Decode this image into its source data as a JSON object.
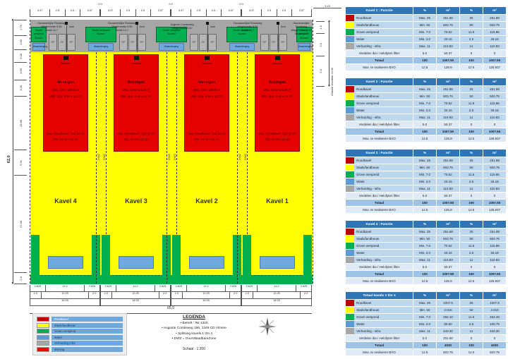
{
  "colors": {
    "roodkavel": "#E60000",
    "stads_landbouw": "#FFFF00",
    "groen_verspreid": "#00B050",
    "water": "#6FA8DC",
    "verharding_infra": "#A6A6A6",
    "table_header": "#2E75B6",
    "table_row": "#BDD7EE",
    "table_row_total": "#9DC3E6",
    "table_row_light": "#DEEBF7"
  },
  "plan": {
    "kavels": [
      {
        "label": "Kavel 4"
      },
      {
        "label": "Kavel 3"
      },
      {
        "label": "Kavel 2"
      },
      {
        "label": "Kavel 1"
      }
    ],
    "kavel_block": {
      "marker_label": "Voordeur",
      "center_lines": [
        "Woningen",
        "Max. BVO 125.9 m²",
        "Min. opp. 9.92 x 12.70"
      ],
      "bottom_lines": [
        "Max. Roodkavel : 251.88 m²",
        "Min. 11.34 x 22.21"
      ],
      "green_label": [
        "Groen verspreid",
        "Bomen"
      ],
      "water_label": "Waterberging",
      "dwz_label": "DWZ",
      "parking_label": "P.P",
      "bord_label": "bord"
    },
    "road_label": [
      "Gezamenlijke Rondweg",
      "Wegbreedte 5.50",
      "Asfalt 14.7"
    ],
    "street_label": [
      "Auguste Comteweg",
      "Wegbreedte 5.50"
    ],
    "dims": {
      "top_upper": [
        "2.0",
        "2.0",
        "2.0"
      ],
      "top_per_kavel": [
        "3.37",
        "2.5",
        "2.5",
        "3.37"
      ],
      "left_total": "62,0",
      "left_segments": [
        "2.75",
        "2.50",
        "2.00",
        "3.60",
        "3.00",
        "13.98",
        "5.91",
        "27.40",
        "2.0"
      ],
      "bottom_row1": [
        "2.625",
        "11.0",
        "2.625"
      ],
      "bottom_row2": [
        "2.0",
        "12.25",
        "2.0"
      ],
      "bottom_row3": "16.25",
      "bottom_total": "65,0",
      "right_top": "3.43",
      "right_segments": [
        "1.5",
        "3.5",
        "5.0"
      ],
      "right_total": "Afstand Voordeur 10.00"
    }
  },
  "legend": {
    "items": [
      {
        "label": "Roodkavel",
        "color": "#C00000"
      },
      {
        "label": "Stads/landbouw",
        "color": "#FFFF00"
      },
      {
        "label": "Groen verspreid",
        "color": "#00B050"
      },
      {
        "label": "Water",
        "color": "#5B9BD5"
      },
      {
        "label": "Verharding infra",
        "color": "#A6A6A6"
      },
      {
        "label": "Woning",
        "color": "#FF0000"
      }
    ]
  },
  "legenda_text": {
    "title": "LEGENDA",
    "bullets": [
      "Betreft : INI 1320",
      "Auguste Comteweg 166, 1349 CD Almere",
      "Splitsing  kavels 1 t/m 4",
      "DWZ = DoorWaadbareZone"
    ],
    "scale": "Schaal  : 1:200"
  },
  "tables": [
    {
      "title": "Kavel 1 : Functie",
      "columns": [
        "%",
        "m²",
        "%",
        "m²"
      ],
      "rows": [
        {
          "swatch": "#C00000",
          "label": "Roodkavel",
          "values": [
            "Max. 25",
            "251.88",
            "25",
            "251.88"
          ]
        },
        {
          "swatch": "#FFFF00",
          "label": "Stads/landbouw",
          "values": [
            "Min. 50",
            "503.75",
            "50",
            "503.75"
          ]
        },
        {
          "swatch": "#00B050",
          "label": "Groen verspreid",
          "values": [
            "Min. 7.0",
            "70.52",
            "11.5",
            "115.86"
          ]
        },
        {
          "swatch": "#5B9BD5",
          "label": "Water",
          "values": [
            "Min. 2.0",
            "20.15",
            "2.5",
            "25.18"
          ]
        },
        {
          "swatch": "#A6A6A6",
          "label": "Verharding - infra",
          "values": [
            "Max. 11",
            "110.83",
            "11",
            "110.83"
          ]
        },
        {
          "swatch": null,
          "light": true,
          "label": "Verdelen iba / Helofyten filter",
          "values": [
            "5.0",
            "50.37",
            "0",
            "0"
          ]
        },
        {
          "swatch": null,
          "total": true,
          "label": "Totaal",
          "values": [
            "100",
            "1007.50",
            "100",
            "1007.50"
          ]
        },
        {
          "swatch": null,
          "light": true,
          "label": "Max. te realiseren BVO",
          "values": [
            "12.5",
            "125.9",
            "12.5",
            "125.937"
          ]
        }
      ]
    },
    {
      "title": "Kavel 2 : Functie",
      "columns": [
        "%",
        "m²",
        "%",
        "m²"
      ],
      "rows": [
        {
          "swatch": "#C00000",
          "label": "Roodkavel",
          "values": [
            "Max. 25",
            "251.88",
            "25",
            "251.88"
          ]
        },
        {
          "swatch": "#FFFF00",
          "label": "Stads/landbouw",
          "values": [
            "Min. 50",
            "503.75",
            "50",
            "503.75"
          ]
        },
        {
          "swatch": "#00B050",
          "label": "Groen verspreid",
          "values": [
            "Min. 7.0",
            "70.52",
            "11.5",
            "115.86"
          ]
        },
        {
          "swatch": "#5B9BD5",
          "label": "Water",
          "values": [
            "Min. 2.0",
            "20.15",
            "2.5",
            "25.18"
          ]
        },
        {
          "swatch": "#A6A6A6",
          "label": "Verharding - infra",
          "values": [
            "Max. 11",
            "110.83",
            "11",
            "110.83"
          ]
        },
        {
          "swatch": null,
          "light": true,
          "label": "Verdelen iba / Helofyten filter",
          "values": [
            "5.0",
            "50.37",
            "0",
            "0"
          ]
        },
        {
          "swatch": null,
          "total": true,
          "label": "Totaal",
          "values": [
            "100",
            "1007.50",
            "100",
            "1007.50"
          ]
        },
        {
          "swatch": null,
          "light": true,
          "label": "Max. te realiseren BVO",
          "values": [
            "12.5",
            "125.9",
            "12.5",
            "125.937"
          ]
        }
      ]
    },
    {
      "title": "Kavel 3 : Functie",
      "columns": [
        "%",
        "m²",
        "%",
        "m²"
      ],
      "rows": [
        {
          "swatch": "#C00000",
          "label": "Roodkavel",
          "values": [
            "Max. 25",
            "251.88",
            "25",
            "251.88"
          ]
        },
        {
          "swatch": "#FFFF00",
          "label": "Stads/landbouw",
          "values": [
            "Min. 50",
            "503.75",
            "50",
            "503.75"
          ]
        },
        {
          "swatch": "#00B050",
          "label": "Groen verspreid",
          "values": [
            "Min. 7.0",
            "70.52",
            "11.5",
            "115.86"
          ]
        },
        {
          "swatch": "#5B9BD5",
          "label": "Water",
          "values": [
            "Min. 2.0",
            "20.15",
            "2.5",
            "25.18"
          ]
        },
        {
          "swatch": "#A6A6A6",
          "label": "Verharding - infra",
          "values": [
            "Max. 11",
            "110.83",
            "11",
            "110.83"
          ]
        },
        {
          "swatch": null,
          "light": true,
          "label": "Verdelen iba / Helofyten filter",
          "values": [
            "5.0",
            "50.37",
            "0",
            "0"
          ]
        },
        {
          "swatch": null,
          "total": true,
          "label": "Totaal",
          "values": [
            "100",
            "1007.50",
            "100",
            "1007.50"
          ]
        },
        {
          "swatch": null,
          "light": true,
          "label": "Max. te realiseren BVO",
          "values": [
            "12.5",
            "125.9",
            "12.5",
            "125.937"
          ]
        }
      ]
    },
    {
      "title": "Kavel 4 : Functie",
      "columns": [
        "%",
        "m²",
        "%",
        "m²"
      ],
      "rows": [
        {
          "swatch": "#C00000",
          "label": "Roodkavel",
          "values": [
            "Max. 25",
            "251.88",
            "25",
            "251.88"
          ]
        },
        {
          "swatch": "#FFFF00",
          "label": "Stads/landbouw",
          "values": [
            "Min. 50",
            "503.75",
            "50",
            "503.75"
          ]
        },
        {
          "swatch": "#00B050",
          "label": "Groen verspreid",
          "values": [
            "Min. 7.0",
            "70.52",
            "11.5",
            "115.86"
          ]
        },
        {
          "swatch": "#5B9BD5",
          "label": "Water",
          "values": [
            "Min. 2.0",
            "20.15",
            "2.5",
            "25.18"
          ]
        },
        {
          "swatch": "#A6A6A6",
          "label": "Verharding - infra",
          "values": [
            "Max. 11",
            "110.83",
            "11",
            "110.83"
          ]
        },
        {
          "swatch": null,
          "light": true,
          "label": "Verdelen iba / Helofyten filter",
          "values": [
            "5.0",
            "50.37",
            "0",
            "0"
          ]
        },
        {
          "swatch": null,
          "total": true,
          "label": "Totaal",
          "values": [
            "100",
            "1007.50",
            "100",
            "1007.50"
          ]
        },
        {
          "swatch": null,
          "light": true,
          "label": "Max. te realiseren BVO",
          "values": [
            "12.5",
            "125.9",
            "12.5",
            "125.937"
          ]
        }
      ]
    },
    {
      "title": "Totaal kavels 1 t/m 4",
      "columns": [
        "%",
        "m²",
        "%",
        "m²"
      ],
      "rows": [
        {
          "swatch": "#C00000",
          "label": "Roodkavel",
          "values": [
            "Max. 25",
            "1007.5",
            "25",
            "1007.5"
          ]
        },
        {
          "swatch": "#FFFF00",
          "label": "Stads/landbouw",
          "values": [
            "Min. 50",
            "2.015",
            "50",
            "2.015"
          ]
        },
        {
          "swatch": "#00B050",
          "label": "Groen verspreid",
          "values": [
            "Min. 7.0",
            "282.10",
            "11.5",
            "463.45"
          ]
        },
        {
          "swatch": "#5B9BD5",
          "label": "Water",
          "values": [
            "Min. 2.0",
            "80.60",
            "2.5",
            "100.75"
          ]
        },
        {
          "swatch": "#A6A6A6",
          "label": "Verharding - infra",
          "values": [
            "Max. 11",
            "443.30",
            "11",
            "443.30"
          ]
        },
        {
          "swatch": null,
          "light": true,
          "label": "Verdelen iba / Helofyten filter",
          "values": [
            "5.0",
            "201.50",
            "0",
            "0"
          ]
        },
        {
          "swatch": null,
          "total": true,
          "label": "Totaal",
          "values": [
            "100",
            "4030",
            "100",
            "4030"
          ]
        },
        {
          "swatch": null,
          "light": true,
          "label": "Max. te realiseren BVO",
          "values": [
            "12.5",
            "503.75",
            "12.5",
            "503.75"
          ]
        }
      ]
    }
  ]
}
